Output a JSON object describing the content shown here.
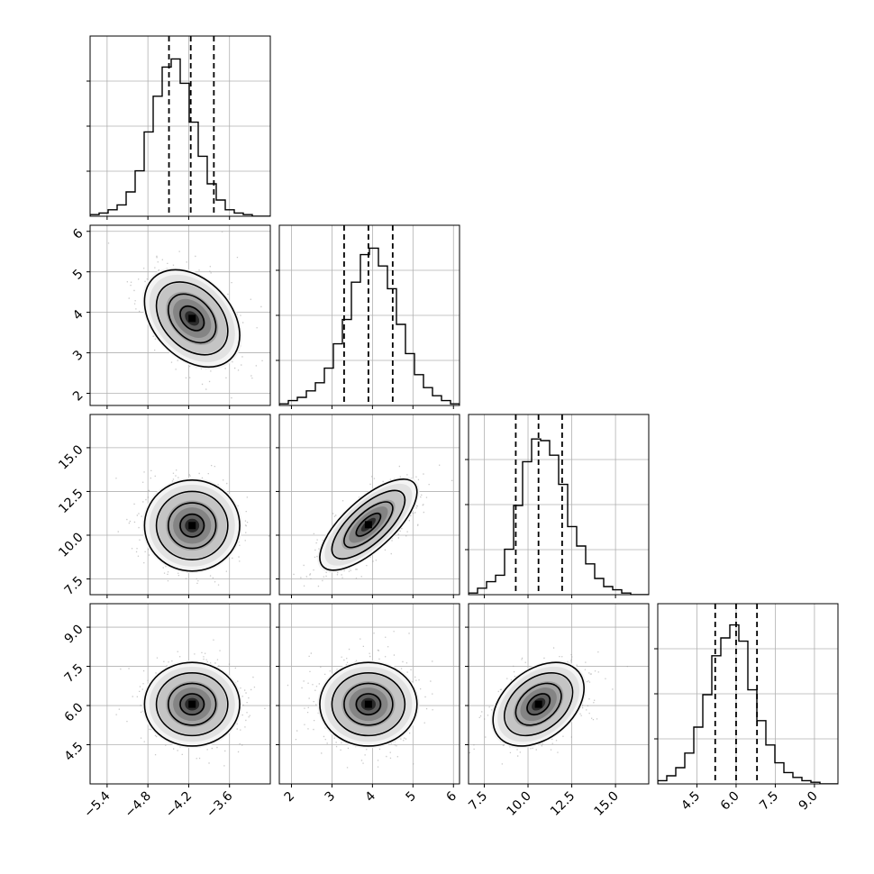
{
  "chart_data": {
    "type": "corner",
    "grid": true,
    "parameters": [
      {
        "id": "p0",
        "range": [
          -5.65,
          -3.0
        ],
        "ticks": [
          -5.4,
          -4.8,
          -4.2,
          -3.6
        ],
        "tick_labels": [
          "−5.4",
          "−4.8",
          "−4.2",
          "−3.6"
        ],
        "quantiles": [
          -4.49,
          -4.17,
          -3.83
        ],
        "hist": {
          "edges_start": -5.65,
          "bin_width": 0.1325,
          "counts": [
            0.01,
            0.02,
            0.04,
            0.07,
            0.15,
            0.28,
            0.52,
            0.74,
            0.92,
            0.97,
            0.82,
            0.58,
            0.37,
            0.2,
            0.1,
            0.04,
            0.02,
            0.01,
            0.0,
            0.0
          ]
        }
      },
      {
        "id": "p1",
        "range": [
          1.7,
          6.15
        ],
        "ticks": [
          2,
          3,
          4,
          5,
          6
        ],
        "tick_labels": [
          "2",
          "3",
          "4",
          "5",
          "6"
        ],
        "quantiles": [
          3.3,
          3.9,
          4.5
        ],
        "hist": {
          "edges_start": 1.7,
          "bin_width": 0.2225,
          "counts": [
            0.01,
            0.03,
            0.05,
            0.09,
            0.14,
            0.23,
            0.38,
            0.53,
            0.76,
            0.93,
            0.97,
            0.86,
            0.72,
            0.5,
            0.32,
            0.19,
            0.11,
            0.06,
            0.03,
            0.01
          ]
        }
      },
      {
        "id": "p2",
        "range": [
          6.6,
          16.9
        ],
        "ticks": [
          7.5,
          10.0,
          12.5,
          15.0
        ],
        "tick_labels": [
          "7.5",
          "10.0",
          "12.5",
          "15.0"
        ],
        "quantiles": [
          9.3,
          10.6,
          11.95
        ],
        "hist": {
          "edges_start": 6.6,
          "bin_width": 0.515,
          "counts": [
            0.01,
            0.04,
            0.08,
            0.12,
            0.28,
            0.55,
            0.82,
            0.96,
            0.95,
            0.86,
            0.68,
            0.42,
            0.3,
            0.19,
            0.1,
            0.05,
            0.03,
            0.01,
            0.0,
            0.0
          ]
        }
      },
      {
        "id": "p3",
        "range": [
          3.0,
          9.9
        ],
        "ticks": [
          4.5,
          6.0,
          7.5,
          9.0
        ],
        "tick_labels": [
          "4.5",
          "6.0",
          "7.5",
          "9.0"
        ],
        "quantiles": [
          5.2,
          6.0,
          6.8
        ],
        "hist": {
          "edges_start": 3.0,
          "bin_width": 0.345,
          "counts": [
            0.02,
            0.05,
            0.1,
            0.19,
            0.35,
            0.55,
            0.79,
            0.9,
            0.98,
            0.88,
            0.58,
            0.39,
            0.24,
            0.13,
            0.07,
            0.04,
            0.02,
            0.01,
            0.0,
            0.0
          ]
        }
      }
    ],
    "pairs": [
      {
        "x": "p0",
        "y": "p1",
        "center": [
          -4.15,
          3.85
        ],
        "sigma": [
          0.35,
          0.6
        ],
        "corr": -0.35
      },
      {
        "x": "p0",
        "y": "p2",
        "center": [
          -4.15,
          10.55
        ],
        "sigma": [
          0.35,
          1.3
        ],
        "corr": 0.0
      },
      {
        "x": "p1",
        "y": "p2",
        "center": [
          3.9,
          10.6
        ],
        "sigma": [
          0.6,
          1.3
        ],
        "corr": 0.72
      },
      {
        "x": "p0",
        "y": "p3",
        "center": [
          -4.15,
          6.05
        ],
        "sigma": [
          0.35,
          0.8
        ],
        "corr": 0.0
      },
      {
        "x": "p1",
        "y": "p3",
        "center": [
          3.9,
          6.05
        ],
        "sigma": [
          0.6,
          0.8
        ],
        "corr": 0.0
      },
      {
        "x": "p2",
        "y": "p3",
        "center": [
          10.6,
          6.05
        ],
        "sigma": [
          1.3,
          0.8
        ],
        "corr": 0.38
      }
    ],
    "hist_counts_normalized": true,
    "contour_levels_sigma": [
      0.5,
      1.0,
      1.5,
      2.0
    ]
  }
}
